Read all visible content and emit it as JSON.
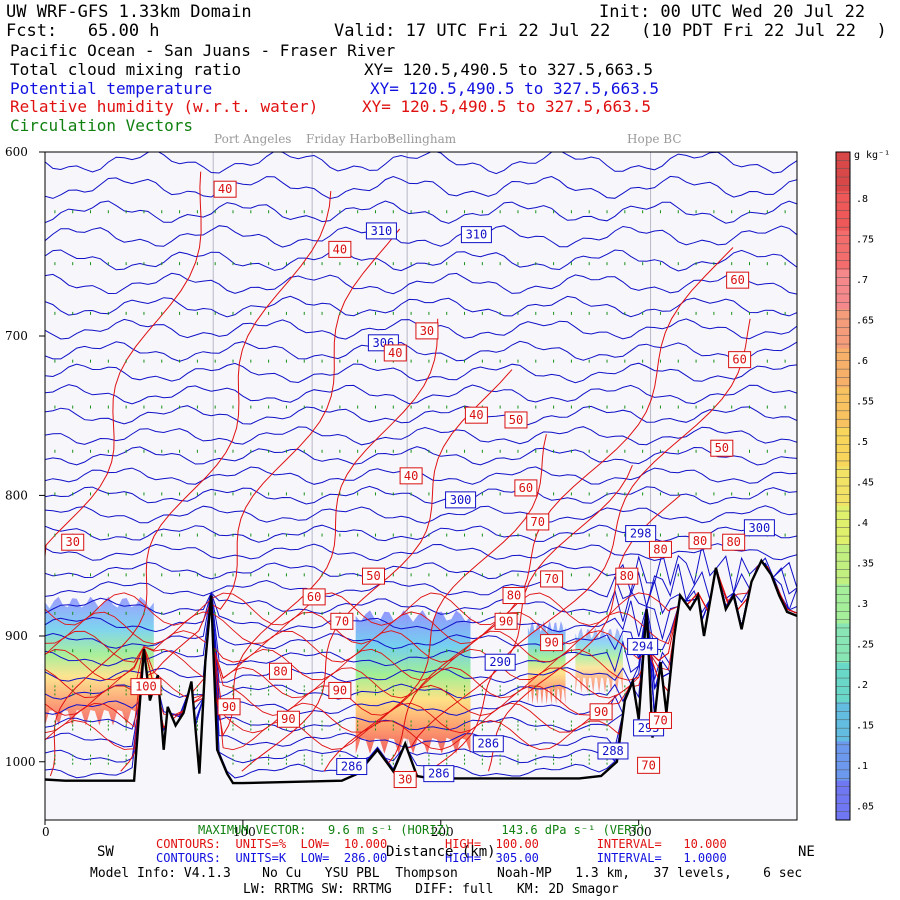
{
  "header": {
    "model": "UW WRF-GFS 1.33km Domain",
    "init": "Init: 00 UTC Wed 20 Jul 22",
    "fcst": "Fcst:   65.00 h",
    "valid": "Valid: 17 UTC Fri 22 Jul 22   (10 PDT Fri 22 Jul 22  )",
    "region": "Pacific Ocean - San Juans - Fraser River"
  },
  "fields": [
    {
      "name": "Total cloud mixing ratio",
      "xy": "XY= 120.5,490.5 to 327.5,663.5",
      "color": "#000000"
    },
    {
      "name": "Potential temperature",
      "xy": "XY= 120.5,490.5 to 327.5,663.5",
      "color": "#1010e0"
    },
    {
      "name": "Relative humidity (w.r.t. water)",
      "xy": "XY= 120.5,490.5 to 327.5,663.5",
      "color": "#e01010"
    },
    {
      "name": "Circulation Vectors",
      "xy": "",
      "color": "#108010"
    }
  ],
  "places": [
    {
      "name": "Port Angeles",
      "km": 85
    },
    {
      "name": "Friday Harbor",
      "km": 135
    },
    {
      "name": "Bellingham",
      "km": 183
    },
    {
      "name": "Hope BC",
      "km": 306
    }
  ],
  "colorbar": {
    "unit": "g kg⁻¹",
    "ticks": [
      ".8",
      ".75",
      ".7",
      ".65",
      ".6",
      ".55",
      ".5",
      ".45",
      ".4",
      ".35",
      ".3",
      ".25",
      ".2",
      ".15",
      ".1",
      ".05"
    ]
  },
  "footer": {
    "max_vector": "MAXIMUM VECTOR:   9.6 m s⁻¹ (HORIZ)       143.6 dPa s⁻¹ (VERT)",
    "contours_rh": "CONTOURS:  UNITS=%  LOW=  10.000        HIGH=  100.00        INTERVAL=   10.000",
    "contours_th": "CONTOURS:  UNITS=K  LOW=  286.00        HIGH=  305.00        INTERVAL=   1.0000",
    "model_info": "Model Info: V4.1.3    No Cu   YSU PBL  Thompson     Noah-MP   1.3 km,   37 levels,    6 sec",
    "physics": "LW: RRTMG SW: RRTMG   DIFF: full   KM: 2D Smagor",
    "sw": "SW",
    "ne": "NE",
    "xlabel": "Distance (km)"
  },
  "chart_data": {
    "type": "contour-cross-section",
    "xlabel": "Distance (km)",
    "ylabel": "",
    "xlim": [
      0,
      380
    ],
    "ylim": [
      1050,
      600
    ],
    "y_scale": "log-pressure",
    "x_ticks": [
      {
        "label": "0",
        "value": 0
      },
      {
        "label": "100",
        "value": 100
      },
      {
        "label": "200",
        "value": 200
      },
      {
        "label": "300",
        "value": 300
      }
    ],
    "y_ticks": [
      {
        "label": "600",
        "value": 600
      },
      {
        "label": "700",
        "value": 700
      },
      {
        "label": "800",
        "value": 800
      },
      {
        "label": "900",
        "value": 900
      },
      {
        "label": "1000",
        "value": 1000
      }
    ],
    "theta_labels": [
      {
        "text": "310",
        "x": 170,
        "p": 641
      },
      {
        "text": "310",
        "x": 218,
        "p": 643
      },
      {
        "text": "306",
        "x": 171,
        "p": 704
      },
      {
        "text": "300",
        "x": 210,
        "p": 803
      },
      {
        "text": "298",
        "x": 301,
        "p": 826
      },
      {
        "text": "300",
        "x": 361,
        "p": 822
      },
      {
        "text": "290",
        "x": 230,
        "p": 920
      },
      {
        "text": "294",
        "x": 302,
        "p": 908
      },
      {
        "text": "293",
        "x": 305,
        "p": 972
      },
      {
        "text": "286",
        "x": 224,
        "p": 985
      },
      {
        "text": "286",
        "x": 155,
        "p": 1004
      },
      {
        "text": "286",
        "x": 199,
        "p": 1010
      },
      {
        "text": "288",
        "x": 287,
        "p": 991
      }
    ],
    "rh_labels": [
      {
        "text": "40",
        "x": 91,
        "p": 619
      },
      {
        "text": "40",
        "x": 149,
        "p": 651
      },
      {
        "text": "30",
        "x": 193,
        "p": 697
      },
      {
        "text": "40",
        "x": 177,
        "p": 710
      },
      {
        "text": "40",
        "x": 218,
        "p": 748
      },
      {
        "text": "50",
        "x": 238,
        "p": 751
      },
      {
        "text": "60",
        "x": 350,
        "p": 668
      },
      {
        "text": "60",
        "x": 351,
        "p": 714
      },
      {
        "text": "50",
        "x": 342,
        "p": 769
      },
      {
        "text": "40",
        "x": 185,
        "p": 787
      },
      {
        "text": "60",
        "x": 243,
        "p": 795
      },
      {
        "text": "70",
        "x": 249,
        "p": 818
      },
      {
        "text": "30",
        "x": 14,
        "p": 832
      },
      {
        "text": "80",
        "x": 331,
        "p": 831
      },
      {
        "text": "80",
        "x": 348,
        "p": 832
      },
      {
        "text": "80",
        "x": 311,
        "p": 837
      },
      {
        "text": "50",
        "x": 166,
        "p": 856
      },
      {
        "text": "70",
        "x": 256,
        "p": 858
      },
      {
        "text": "80",
        "x": 294,
        "p": 856
      },
      {
        "text": "80",
        "x": 237,
        "p": 870
      },
      {
        "text": "60",
        "x": 136,
        "p": 871
      },
      {
        "text": "70",
        "x": 150,
        "p": 889
      },
      {
        "text": "90",
        "x": 233,
        "p": 889
      },
      {
        "text": "90",
        "x": 256,
        "p": 905
      },
      {
        "text": "80",
        "x": 119,
        "p": 927
      },
      {
        "text": "100",
        "x": 51,
        "p": 939
      },
      {
        "text": "90",
        "x": 149,
        "p": 942
      },
      {
        "text": "90",
        "x": 93,
        "p": 955
      },
      {
        "text": "90",
        "x": 281,
        "p": 959
      },
      {
        "text": "90",
        "x": 123,
        "p": 965
      },
      {
        "text": "70",
        "x": 311,
        "p": 966
      },
      {
        "text": "30",
        "x": 182,
        "p": 1015
      },
      {
        "text": "70",
        "x": 305,
        "p": 1003
      }
    ],
    "cloud_regions": [
      {
        "x0": 0,
        "x1": 55,
        "p_top": 875,
        "p_bottom": 962,
        "max_g_kg": 0.55
      },
      {
        "x0": 157,
        "x1": 215,
        "p_top": 885,
        "p_bottom": 985,
        "max_g_kg": 0.7
      },
      {
        "x0": 244,
        "x1": 263,
        "p_top": 893,
        "p_bottom": 945,
        "max_g_kg": 0.6
      },
      {
        "x0": 268,
        "x1": 292,
        "p_top": 898,
        "p_bottom": 936,
        "max_g_kg": 0.3
      }
    ],
    "terrain": [
      {
        "x": 0,
        "p": 1015
      },
      {
        "x": 10,
        "p": 1016
      },
      {
        "x": 30,
        "p": 1016
      },
      {
        "x": 45,
        "p": 1016
      },
      {
        "x": 50,
        "p": 910
      },
      {
        "x": 53,
        "p": 950
      },
      {
        "x": 57,
        "p": 930
      },
      {
        "x": 60,
        "p": 990
      },
      {
        "x": 62,
        "p": 955
      },
      {
        "x": 66,
        "p": 970
      },
      {
        "x": 70,
        "p": 960
      },
      {
        "x": 74,
        "p": 935
      },
      {
        "x": 78,
        "p": 1010
      },
      {
        "x": 81,
        "p": 920
      },
      {
        "x": 84,
        "p": 870
      },
      {
        "x": 87,
        "p": 990
      },
      {
        "x": 92,
        "p": 1010
      },
      {
        "x": 95,
        "p": 1018
      },
      {
        "x": 100,
        "p": 1018
      },
      {
        "x": 150,
        "p": 1016
      },
      {
        "x": 158,
        "p": 1010
      },
      {
        "x": 168,
        "p": 990
      },
      {
        "x": 176,
        "p": 1008
      },
      {
        "x": 182,
        "p": 985
      },
      {
        "x": 188,
        "p": 1012
      },
      {
        "x": 195,
        "p": 1014
      },
      {
        "x": 230,
        "p": 1014
      },
      {
        "x": 270,
        "p": 1014
      },
      {
        "x": 281,
        "p": 1012
      },
      {
        "x": 289,
        "p": 1000
      },
      {
        "x": 293,
        "p": 950
      },
      {
        "x": 297,
        "p": 935
      },
      {
        "x": 300,
        "p": 965
      },
      {
        "x": 304,
        "p": 880
      },
      {
        "x": 307,
        "p": 980
      },
      {
        "x": 311,
        "p": 920
      },
      {
        "x": 314,
        "p": 960
      },
      {
        "x": 318,
        "p": 900
      },
      {
        "x": 321,
        "p": 870
      },
      {
        "x": 326,
        "p": 880
      },
      {
        "x": 330,
        "p": 870
      },
      {
        "x": 333,
        "p": 900
      },
      {
        "x": 339,
        "p": 850
      },
      {
        "x": 344,
        "p": 880
      },
      {
        "x": 348,
        "p": 870
      },
      {
        "x": 352,
        "p": 895
      },
      {
        "x": 357,
        "p": 860
      },
      {
        "x": 362,
        "p": 845
      },
      {
        "x": 367,
        "p": 855
      },
      {
        "x": 371,
        "p": 870
      },
      {
        "x": 375,
        "p": 882
      },
      {
        "x": 380,
        "p": 885
      }
    ]
  }
}
